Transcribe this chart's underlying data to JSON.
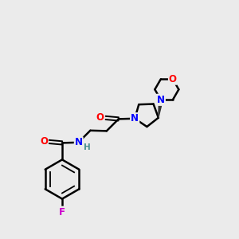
{
  "bg_color": "#ebebeb",
  "bond_color": "#000000",
  "atom_colors": {
    "O": "#ff0000",
    "N": "#0000ff",
    "F": "#cc00cc",
    "H": "#4a9090",
    "C": "#000000"
  },
  "figsize": [
    3.0,
    3.0
  ],
  "dpi": 100
}
